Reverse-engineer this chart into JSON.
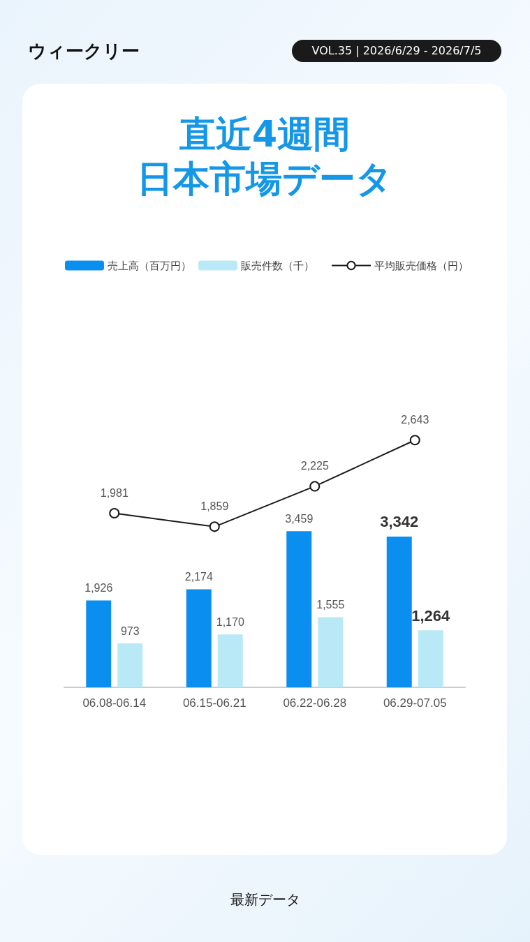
{
  "chart_data": [
    {
      "type": "other",
      "title": "直近4週間",
      "subtitle": "日本市場データ"
    },
    {
      "type": "bar",
      "annotations": [
        "ウィークリー",
        "VOL.35 | 2026/6/29 - 2026/7/5",
        "最新データ"
      ],
      "categories": [
        "06.08-06.14",
        "06.15-06.21",
        "06.22-06.28",
        "06.29-07.05"
      ],
      "series": [
        {
          "name": "売上高（百万円）",
          "color": "#0a8ff0",
          "values": [
            1926,
            2174,
            3459,
            3342
          ],
          "value_labels": [
            "1,926",
            "2,174",
            "3,459",
            "3,342"
          ]
        },
        {
          "name": "販売件数（千）",
          "color": "#b9e9f7",
          "values": [
            973,
            1170,
            1555,
            1264
          ],
          "value_labels": [
            "973",
            "1,170",
            "1,555",
            "1,264"
          ]
        }
      ],
      "legend": "top",
      "tick_labels": "x",
      "grid": false
    },
    {
      "type": "line",
      "categories": [
        null,
        null,
        null,
        null
      ],
      "series": [
        {
          "name": "平均販売価格（円）",
          "color": "#1a1a1a",
          "values": [
            1981,
            1859,
            2225,
            2643
          ],
          "value_labels": [
            "1,981",
            "1,859",
            "2,225",
            "2,643"
          ]
        }
      ],
      "marker": "circle",
      "legend": "top",
      "tick_labels": false,
      "grid": false
    }
  ]
}
